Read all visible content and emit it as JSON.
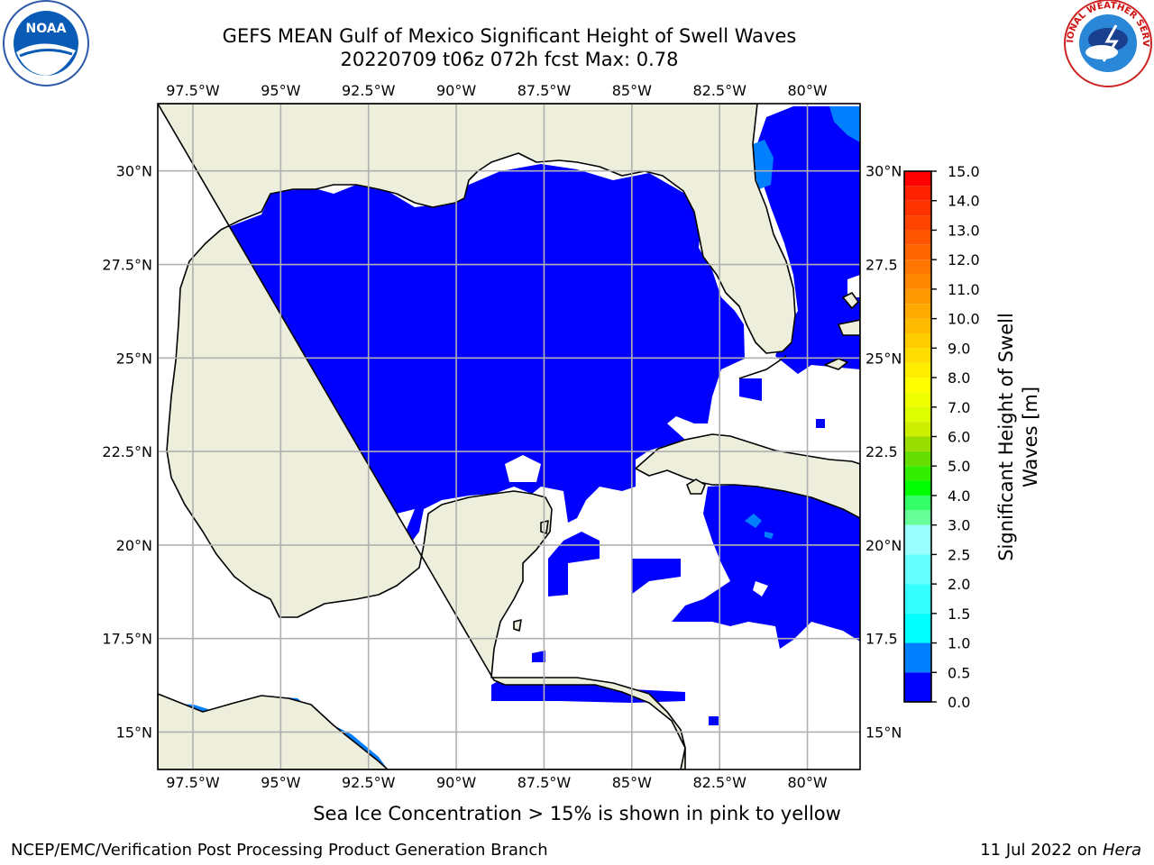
{
  "title": {
    "line1": "GEFS MEAN Gulf of Mexico Significant Height of Swell Waves",
    "line2": "20220709 t06z 072h fcst   Max: 0.78"
  },
  "map": {
    "lon_range": [
      -98.5,
      -78.5
    ],
    "lat_range": [
      14,
      31.8
    ],
    "lon_ticks": [
      {
        "value": -97.5,
        "label": "97.5°W"
      },
      {
        "value": -95,
        "label": "95°W"
      },
      {
        "value": -92.5,
        "label": "92.5°W"
      },
      {
        "value": -90,
        "label": "90°W"
      },
      {
        "value": -87.5,
        "label": "87.5°W"
      },
      {
        "value": -85,
        "label": "85°W"
      },
      {
        "value": -82.5,
        "label": "82.5°W"
      },
      {
        "value": -80,
        "label": "80°W"
      }
    ],
    "lat_ticks_left": [
      {
        "value": 30,
        "label": "30°N"
      },
      {
        "value": 27.5,
        "label": "27.5°N"
      },
      {
        "value": 25,
        "label": "25°N"
      },
      {
        "value": 22.5,
        "label": "22.5°N"
      },
      {
        "value": 20,
        "label": "20°N"
      },
      {
        "value": 17.5,
        "label": "17.5°N"
      },
      {
        "value": 15,
        "label": "15°N"
      }
    ],
    "lat_ticks_right": [
      {
        "value": 30,
        "label": "30°N"
      },
      {
        "value": 27.5,
        "label": "27.5"
      },
      {
        "value": 25,
        "label": "25°N"
      },
      {
        "value": 22.5,
        "label": "22.5"
      },
      {
        "value": 20,
        "label": "20°N"
      },
      {
        "value": 17.5,
        "label": "17.5"
      },
      {
        "value": 15,
        "label": "15°N"
      }
    ],
    "land_color": "#eeeedd",
    "grid_color": "#b0b0b0"
  },
  "colorbar": {
    "label_line1": "Significant Height of Swell",
    "label_line2": "Waves [m]",
    "levels": [
      0.0,
      0.5,
      1.0,
      1.5,
      2.0,
      2.5,
      3.0,
      3.5,
      4.0,
      4.5,
      5.0,
      5.5,
      6.0,
      6.5,
      7.0,
      7.5,
      8.0,
      8.5,
      9.0,
      9.5,
      10.0,
      10.5,
      11.0,
      11.5,
      12.0,
      12.5,
      13.0,
      13.5,
      14.0,
      14.5,
      15.0
    ],
    "tick_labels": [
      "0.0",
      "0.5",
      "1.0",
      "1.5",
      "2.0",
      "2.5",
      "3.0",
      "4.0",
      "5.0",
      "6.0",
      "7.0",
      "8.0",
      "9.0",
      "10.0",
      "11.0",
      "12.0",
      "13.0",
      "14.0",
      "15.0"
    ],
    "tick_values": [
      0.0,
      0.5,
      1.0,
      1.5,
      2.0,
      2.5,
      3.0,
      4.0,
      5.0,
      6.0,
      7.0,
      8.0,
      9.0,
      10.0,
      11.0,
      12.0,
      13.0,
      14.0,
      15.0
    ],
    "colors": [
      "#0000ff",
      "#0080ff",
      "#00ffff",
      "#33ffff",
      "#66ffff",
      "#99ffff",
      "#66ff99",
      "#33ff66",
      "#00ff00",
      "#33ee00",
      "#66dd00",
      "#99dd00",
      "#ccee00",
      "#ddff00",
      "#eeff00",
      "#ffff00",
      "#ffee00",
      "#ffdd00",
      "#ffcc00",
      "#ffbb00",
      "#ffaa00",
      "#ff9900",
      "#ff8800",
      "#ff7700",
      "#ff6600",
      "#ff5500",
      "#ff4400",
      "#ff3300",
      "#ff2200",
      "#ff0000"
    ]
  },
  "footer": {
    "note": "Sea Ice Concentration > 15% is shown in pink to yellow",
    "credit_left": "NCEP/EMC/Verification Post Processing Product Generation Branch",
    "date": "11 Jul 2022 on ",
    "host": "Hera"
  },
  "logos": {
    "left": "noaa-logo",
    "right": "national-weather-service-logo",
    "right_text": "NATIONAL WEATHER SERVICE"
  },
  "chart_data": {
    "type": "heatmap",
    "variable": "Significant Height of Swell Waves",
    "units": "m",
    "max": 0.78,
    "dominant_band": [
      0.0,
      0.5
    ],
    "secondary_band": [
      0.5,
      1.0
    ],
    "secondary_band_regions": [
      "Gulf of Tehuantepec (SW corner)",
      "Atlantic off NE Florida",
      "small Caribbean spots south of Cuba"
    ]
  }
}
